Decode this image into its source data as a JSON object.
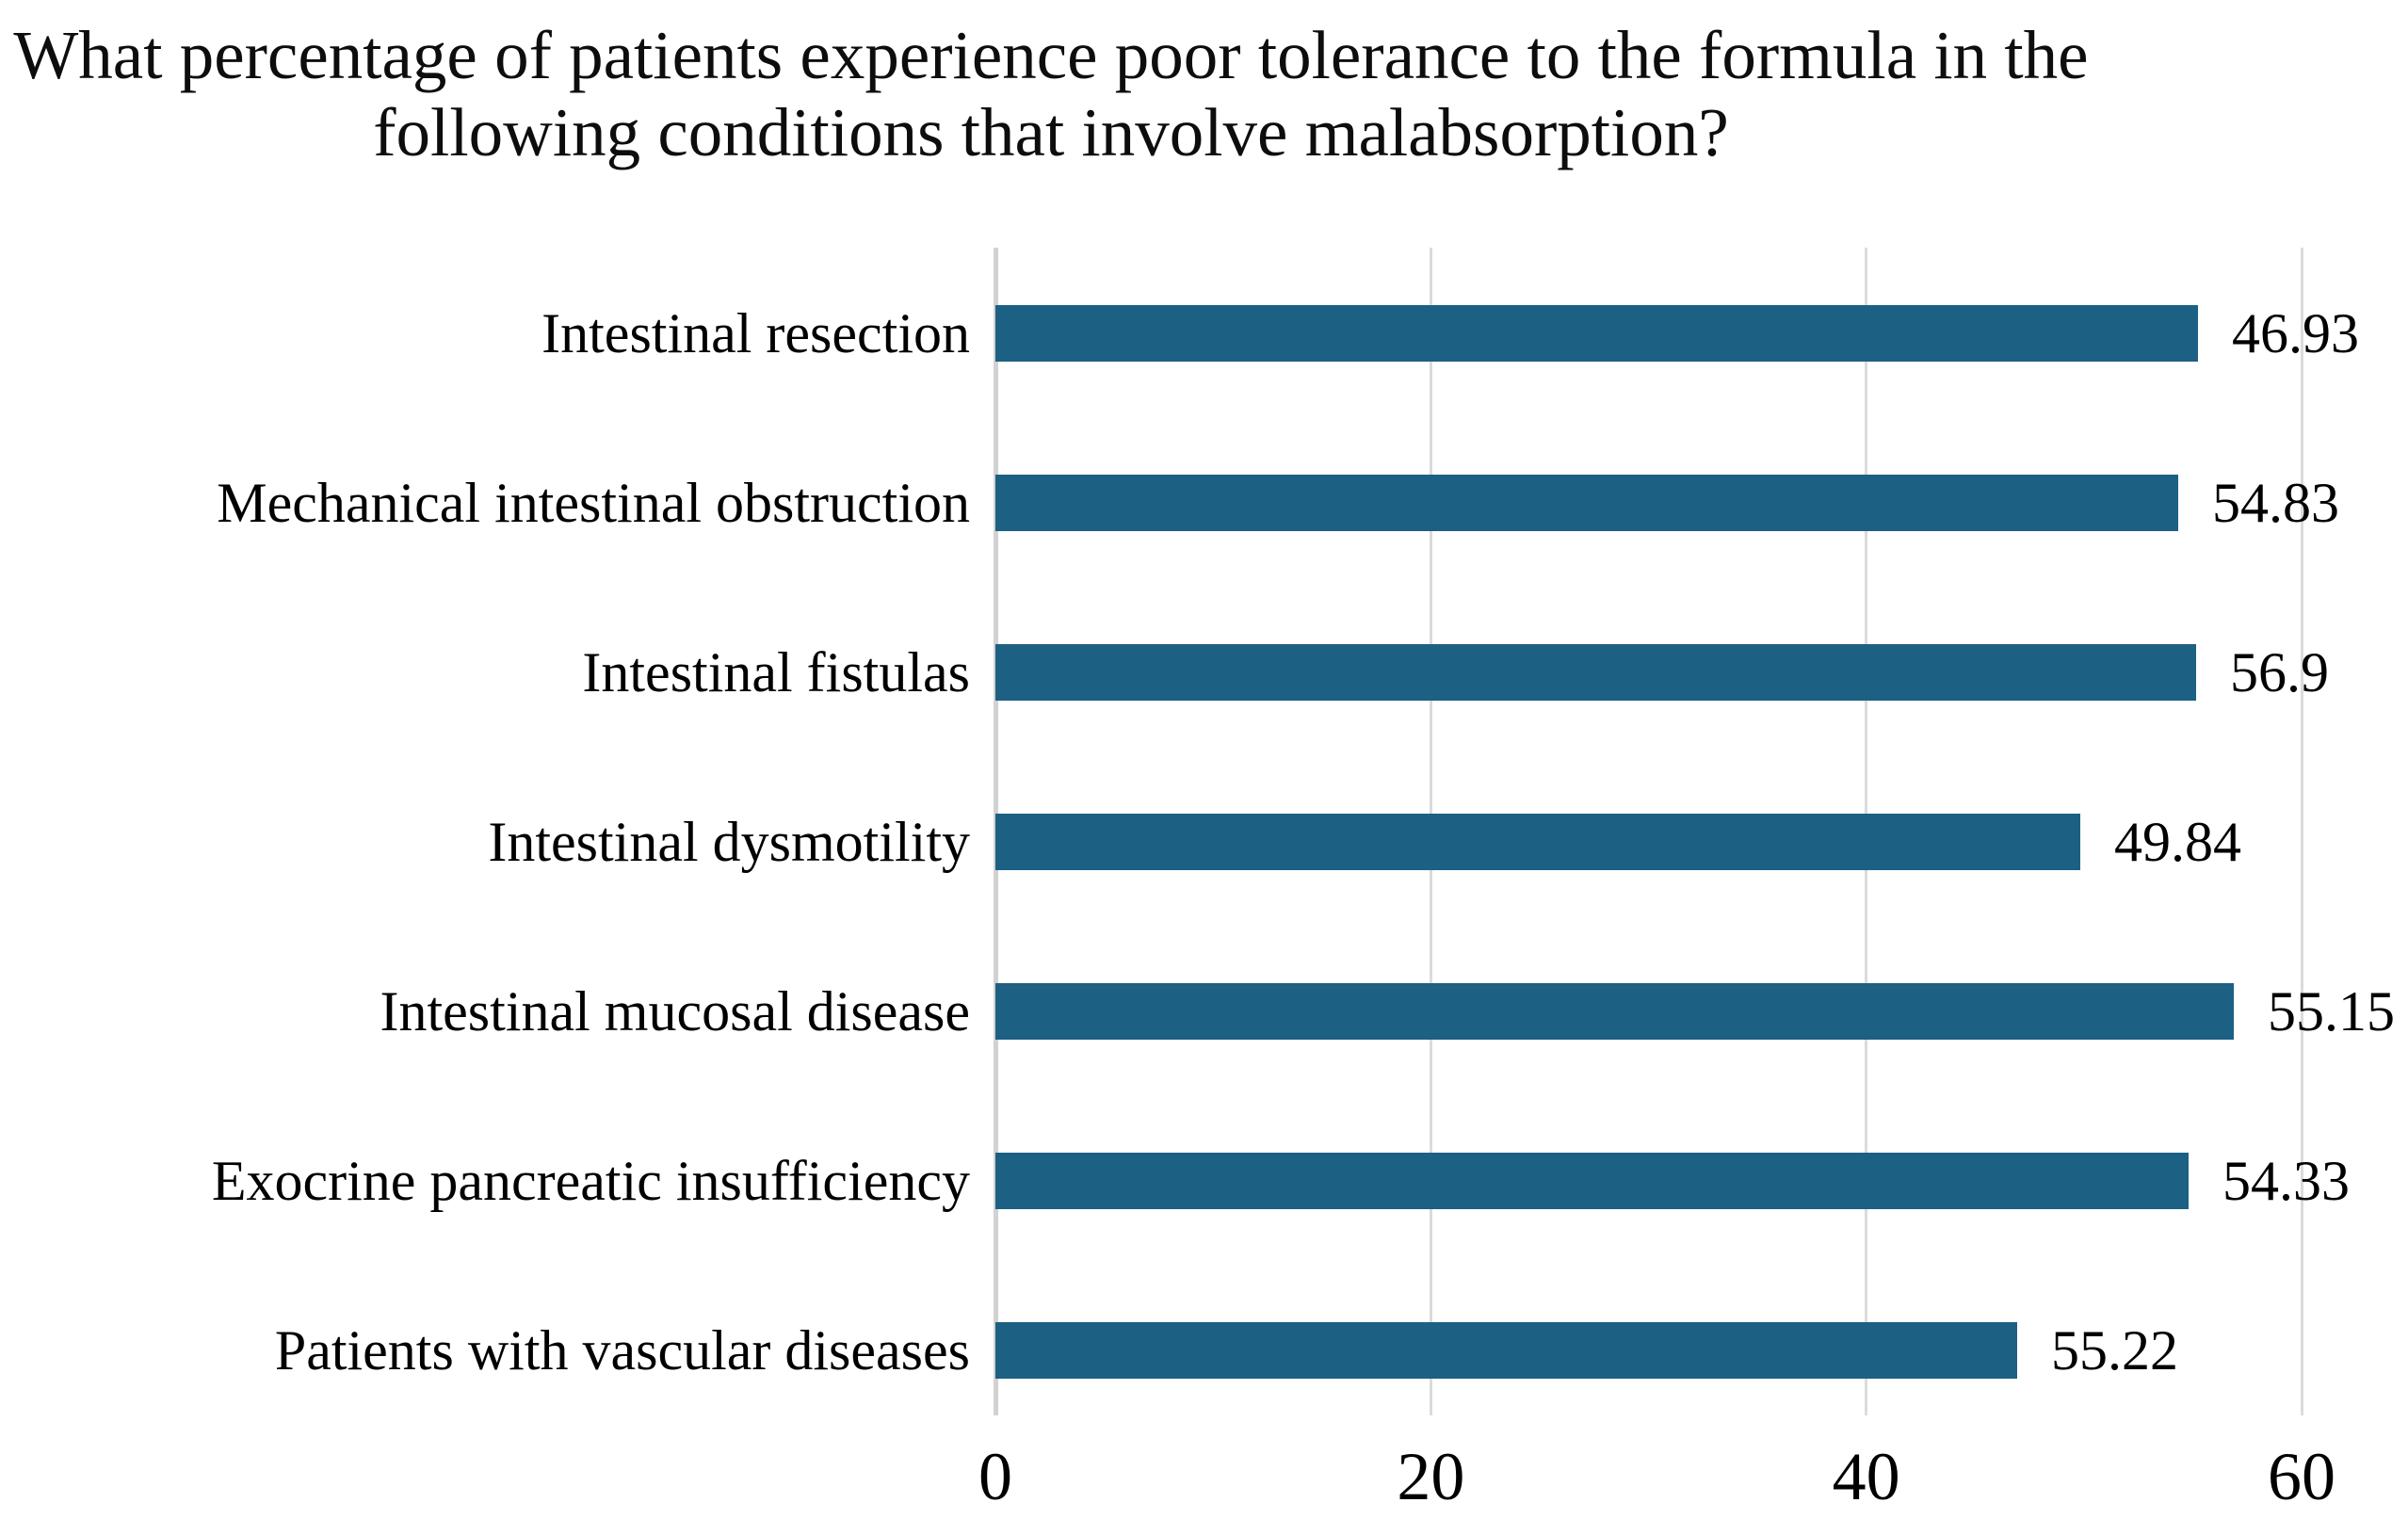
{
  "title": "What percentage of patients experience poor tolerance to the formula in the following conditions that involve malabsorption?",
  "colors": {
    "bar": "#1c6083",
    "gridline": "#dbdbdb",
    "axis_line": "#d2d2d2",
    "text": "#000000",
    "background": "#ffffff"
  },
  "chart_data": {
    "type": "bar",
    "orientation": "horizontal",
    "title": "What percentage of patients experience poor tolerance to the formula in the following conditions that involve malabsorption?",
    "categories": [
      "Intestinal resection",
      "Mechanical intestinal obstruction",
      "Intestinal fistulas",
      "Intestinal dysmotility",
      "Intestinal mucosal disease",
      "Exocrine pancreatic insufficiency",
      "Patients with vascular diseases"
    ],
    "values": [
      46.93,
      54.83,
      56.9,
      49.84,
      55.15,
      54.33,
      55.22
    ],
    "value_labels": [
      "46.93",
      "54.83",
      "56.9",
      "49.84",
      "55.15",
      "54.33",
      "55.22"
    ],
    "bar_drawn_values": [
      55.22,
      54.33,
      55.15,
      49.84,
      56.9,
      54.83,
      46.93
    ],
    "xlabel": "",
    "ylabel": "",
    "xlim": [
      0,
      60
    ],
    "x_ticks": [
      "0",
      "20",
      "40",
      "60"
    ],
    "grid": "vertical-gridlines-on",
    "legend": "none"
  }
}
